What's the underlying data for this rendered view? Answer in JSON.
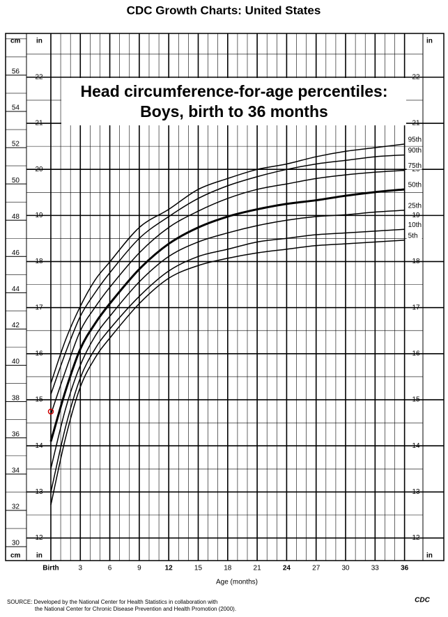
{
  "header": {
    "title": "CDC Growth Charts: United States"
  },
  "chart_data": {
    "type": "line",
    "title": [
      "Head circumference-for-age percentiles:",
      "Boys, birth to 36 months"
    ],
    "x_label": "Age (months)",
    "y_unit": "cm",
    "y2_unit": "in",
    "x": [
      0,
      1.5,
      3,
      4.5,
      6,
      9,
      12,
      15,
      18,
      21,
      24,
      27,
      30,
      33,
      36
    ],
    "series": [
      {
        "name": "95th",
        "color": "#000000",
        "values": [
          39.0,
          41.4,
          43.25,
          44.7,
          45.7,
          47.6,
          48.6,
          49.7,
          50.3,
          50.8,
          51.1,
          51.5,
          51.8,
          52.0,
          52.2
        ]
      },
      {
        "name": "90th",
        "color": "#000000",
        "values": [
          38.4,
          40.7,
          42.7,
          44.0,
          45.1,
          47.0,
          48.2,
          49.2,
          49.9,
          50.4,
          50.8,
          51.1,
          51.3,
          51.5,
          51.6
        ]
      },
      {
        "name": "75th",
        "color": "#000000",
        "values": [
          37.3,
          39.7,
          41.9,
          43.2,
          44.3,
          46.2,
          47.6,
          48.5,
          49.2,
          49.7,
          50.0,
          50.3,
          50.5,
          50.65,
          50.75
        ]
      },
      {
        "name": "50th",
        "color": "#000000",
        "bold": true,
        "values": [
          35.8,
          38.6,
          40.9,
          42.3,
          43.4,
          45.3,
          46.7,
          47.6,
          48.2,
          48.6,
          48.9,
          49.1,
          49.35,
          49.55,
          49.7
        ]
      },
      {
        "name": "25th",
        "color": "#000000",
        "values": [
          34.3,
          37.6,
          40.0,
          41.6,
          42.7,
          44.6,
          46.0,
          46.8,
          47.3,
          47.7,
          48.0,
          48.2,
          48.3,
          48.45,
          48.55
        ]
      },
      {
        "name": "10th",
        "color": "#000000",
        "values": [
          33.0,
          36.6,
          39.3,
          40.9,
          42.0,
          43.8,
          45.2,
          46.0,
          46.4,
          46.8,
          47.0,
          47.2,
          47.3,
          47.4,
          47.5
        ]
      },
      {
        "name": "5th",
        "color": "#000000",
        "values": [
          32.3,
          36.0,
          38.8,
          40.4,
          41.5,
          43.4,
          44.8,
          45.5,
          45.9,
          46.2,
          46.4,
          46.6,
          46.7,
          46.8,
          46.9
        ]
      }
    ],
    "point": {
      "x": 0,
      "y": 37.45,
      "color": "#cc0000"
    },
    "xlim": [
      -2.48,
      37.87
    ],
    "xticks": [
      {
        "value": 0,
        "label": "Birth"
      },
      3,
      6,
      9,
      12,
      15,
      18,
      21,
      24,
      27,
      30,
      33,
      36
    ],
    "x_minor_step": 1,
    "ylim": [
      29.23,
      58.3
    ],
    "yticks": [
      30,
      32,
      34,
      36,
      38,
      40,
      42,
      44,
      46,
      48,
      50,
      52,
      54,
      56
    ],
    "y_minor_step": 1,
    "y2lim": [
      11.51,
      22.95
    ],
    "y2ticks": [
      12,
      13,
      14,
      15,
      16,
      17,
      18,
      19,
      20,
      21,
      22
    ],
    "y2_minor_step": 0.5,
    "grid": true
  },
  "footer": {
    "source": [
      "SOURCE: Developed by the National Center for Health Statistics in collaboration with",
      "the National Center for Chronic Disease Prevention and Health Promotion (2000)."
    ],
    "logo": "CDC"
  }
}
